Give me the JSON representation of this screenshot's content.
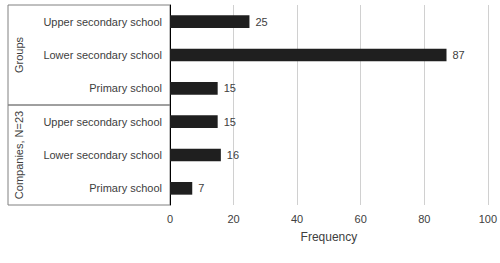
{
  "chart_data": {
    "type": "bar",
    "orientation": "horizontal",
    "categories": [
      "Upper secondary school",
      "Lower secondary school",
      "Primary school",
      "Upper secondary school",
      "Lower secondary school",
      "Primary school"
    ],
    "groups": [
      "Groups",
      "Groups",
      "Groups",
      "Companies, N=23",
      "Companies, N=23",
      "Companies, N=23"
    ],
    "values": [
      25,
      87,
      15,
      15,
      16,
      7
    ],
    "color": "#1f1f1f",
    "x_label": "Frequency",
    "xlim": [
      0,
      100
    ],
    "xticks": [
      0,
      20,
      40,
      60,
      80,
      100
    ],
    "grid": true,
    "data_labels": true
  }
}
